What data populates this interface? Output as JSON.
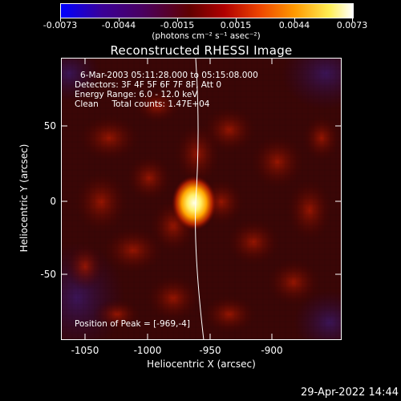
{
  "colorbar": {
    "tick_labels": [
      "-0.0073",
      "-0.0044",
      "-0.0015",
      "0.0015",
      "0.0044",
      "0.0073"
    ],
    "units_label": "(photons cm⁻² s⁻¹ asec⁻²)"
  },
  "title": "Reconstructed RHESSI Image",
  "info": {
    "line1": "6-Mar-2003 05:11:28.000 to 05:15:08.000",
    "line2": "Detectors: 3F 4F 5F 6F 7F 8F, Att 0",
    "line3": "Energy Range: 6.0 - 12.0 keV",
    "line4": "Clean     Total counts: 1.47E+04",
    "peak": "Position of Peak = [-969,-4]"
  },
  "axes": {
    "xlabel": "Heliocentric X (arcsec)",
    "ylabel": "Heliocentric Y (arcsec)",
    "x_ticks": [
      "-1050",
      "-1000",
      "-950",
      "-900"
    ],
    "y_ticks": [
      "50",
      "0",
      "-50"
    ]
  },
  "footer": {
    "timestamp": "29-Apr-2022 14:44"
  }
}
